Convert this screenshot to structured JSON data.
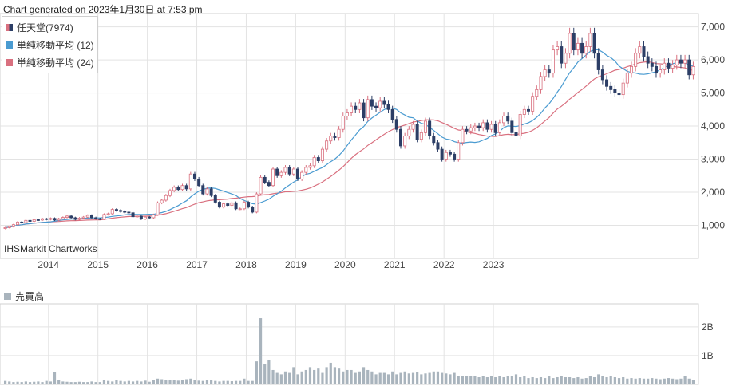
{
  "header": {
    "generated": "Chart generated on 2023年1月30日 at 7:53 pm"
  },
  "watermark": "IHSMarkit Chartworks",
  "colors": {
    "up": "#d9707f",
    "down": "#2c3e66",
    "ma12": "#4a9bd1",
    "ma24": "#d9707f",
    "volume": "#a9b4bd",
    "grid": "#e3e3e3"
  },
  "chart_data": [
    {
      "type": "candlestick",
      "title": "",
      "legend": [
        "任天堂(7974)",
        "単純移動平均 (12)",
        "単純移動平均 (24)"
      ],
      "legend_position": "top-left",
      "grid": true,
      "x_ticks": [
        "2014",
        "2015",
        "2016",
        "2017",
        "2018",
        "2019",
        "2020",
        "2021",
        "2022",
        "2023"
      ],
      "y_ticks": [
        "1,000",
        "2,000",
        "3,000",
        "4,000",
        "5,000",
        "6,000",
        "7,000"
      ],
      "ylim": [
        0,
        7400
      ],
      "closes": [
        930,
        960,
        1020,
        1100,
        1080,
        1150,
        1120,
        1170,
        1160,
        1200,
        1180,
        1210,
        1160,
        1200,
        1240,
        1280,
        1230,
        1180,
        1220,
        1250,
        1300,
        1230,
        1200,
        1190,
        1330,
        1350,
        1480,
        1450,
        1420,
        1400,
        1380,
        1260,
        1280,
        1190,
        1250,
        1230,
        1320,
        1680,
        1760,
        1900,
        2050,
        2150,
        2080,
        2200,
        2100,
        2550,
        2400,
        2200,
        1950,
        2100,
        1900,
        1700,
        1550,
        1650,
        1600,
        1680,
        1500,
        1500,
        1700,
        1550,
        1400,
        1950,
        2450,
        2300,
        2200,
        2700,
        2500,
        2600,
        2750,
        2550,
        2700,
        2400,
        2600,
        2750,
        2800,
        3050,
        2950,
        3300,
        3550,
        3700,
        3650,
        3900,
        4300,
        4400,
        4600,
        4500,
        4700,
        4250,
        4800,
        4600,
        4550,
        4750,
        4650,
        4500,
        4200,
        3900,
        3400,
        3700,
        3900,
        4050,
        3600,
        3800,
        4150,
        3700,
        3500,
        3300,
        3000,
        3200,
        3150,
        3000,
        3500,
        3900,
        3850,
        3950,
        4000,
        3950,
        4100,
        3900,
        4050,
        3800,
        4100,
        4300,
        4150,
        3800,
        3700,
        4350,
        4500,
        4450,
        4900,
        5100,
        5500,
        5700,
        5600,
        6300,
        6400,
        5900,
        6200,
        6800,
        6300,
        6500,
        6200,
        6400,
        6800,
        6200,
        5700,
        5400,
        5200,
        5100,
        5000,
        4950,
        5300,
        5600,
        5800,
        6200,
        6400,
        6100,
        5900,
        5800,
        5600,
        5700,
        5900,
        5750,
        5850,
        6000,
        5900,
        6000,
        5550,
        5800
      ]
    },
    {
      "type": "bar",
      "title": "売買高",
      "legend": [
        "売買高"
      ],
      "y_ticks": [
        "1B",
        "2B"
      ],
      "ylim": [
        0,
        2.8
      ],
      "values": [
        0.12,
        0.1,
        0.08,
        0.09,
        0.08,
        0.1,
        0.08,
        0.09,
        0.1,
        0.08,
        0.12,
        0.1,
        0.42,
        0.15,
        0.1,
        0.09,
        0.08,
        0.08,
        0.09,
        0.08,
        0.08,
        0.1,
        0.08,
        0.08,
        0.15,
        0.12,
        0.1,
        0.14,
        0.12,
        0.1,
        0.12,
        0.1,
        0.12,
        0.1,
        0.13,
        0.09,
        0.15,
        0.2,
        0.18,
        0.15,
        0.16,
        0.14,
        0.13,
        0.14,
        0.18,
        0.2,
        0.15,
        0.13,
        0.12,
        0.14,
        0.15,
        0.12,
        0.1,
        0.12,
        0.12,
        0.11,
        0.12,
        0.12,
        0.2,
        0.12,
        0.12,
        0.8,
        2.3,
        0.7,
        0.85,
        0.5,
        0.4,
        0.35,
        0.45,
        0.4,
        0.6,
        0.35,
        0.45,
        0.5,
        0.6,
        0.5,
        0.55,
        0.4,
        0.6,
        0.75,
        0.6,
        0.55,
        0.45,
        0.5,
        0.5,
        0.4,
        0.45,
        0.6,
        0.5,
        0.45,
        0.35,
        0.4,
        0.4,
        0.35,
        0.45,
        0.35,
        0.4,
        0.45,
        0.38,
        0.4,
        0.42,
        0.35,
        0.38,
        0.4,
        0.45,
        0.45,
        0.4,
        0.38,
        0.35,
        0.4,
        0.3,
        0.3,
        0.3,
        0.28,
        0.3,
        0.25,
        0.28,
        0.25,
        0.28,
        0.25,
        0.3,
        0.25,
        0.3,
        0.28,
        0.35,
        0.25,
        0.3,
        0.22,
        0.25,
        0.22,
        0.25,
        0.22,
        0.3,
        0.22,
        0.25,
        0.3,
        0.25,
        0.25,
        0.22,
        0.25,
        0.2,
        0.22,
        0.28,
        0.25,
        0.35,
        0.3,
        0.25,
        0.3,
        0.25,
        0.22,
        0.25,
        0.2,
        0.22,
        0.2,
        0.22,
        0.2,
        0.2,
        0.22,
        0.2,
        0.18,
        0.2,
        0.22,
        0.2,
        0.18,
        0.2,
        0.3,
        0.2,
        0.15
      ]
    }
  ]
}
